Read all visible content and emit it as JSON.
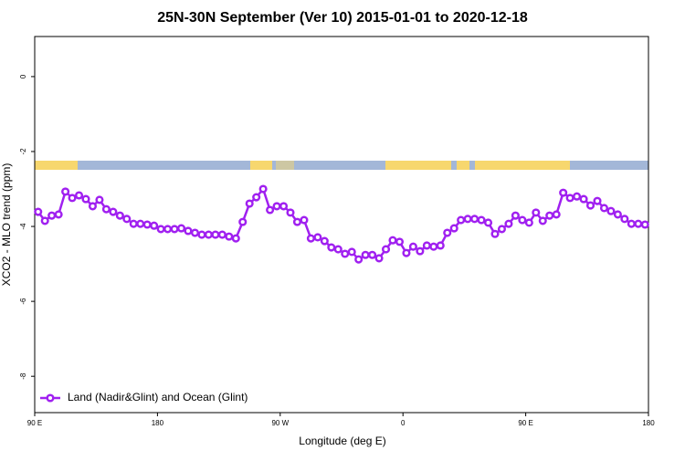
{
  "chart_data": {
    "type": "line",
    "title": "25N-30N September (Ver 10)   2015-01-01 to 2020-12-18",
    "x_label": "Longitude (deg E)",
    "y_label": "XCO2 - MLO trend (ppm)",
    "xlim": [
      90,
      540
    ],
    "ylim": [
      -8.97,
      1.07
    ],
    "xticks": [
      {
        "value": 90,
        "label": "90 E"
      },
      180,
      {
        "value": 270,
        "label": "90 W"
      },
      {
        "value": 360,
        "label": "0"
      },
      {
        "value": 450,
        "label": "90 E"
      },
      {
        "value": 540,
        "label": "180"
      }
    ],
    "yticks": [
      0,
      -2,
      -4,
      -6,
      -8
    ],
    "legend": "bottom-left",
    "x": [
      92.5,
      97.5,
      102.5,
      107.5,
      112.5,
      117.5,
      122.5,
      127.5,
      132.5,
      137.5,
      142.5,
      147.5,
      152.5,
      157.5,
      162.5,
      167.5,
      172.5,
      177.5,
      182.5,
      187.5,
      192.5,
      197.5,
      202.5,
      207.5,
      212.5,
      217.5,
      222.5,
      227.5,
      232.5,
      237.5,
      242.5,
      247.5,
      252.5,
      257.5,
      262.5,
      267.5,
      272.5,
      277.5,
      282.5,
      287.5,
      292.5,
      297.5,
      302.5,
      307.5,
      312.5,
      317.5,
      322.5,
      327.5,
      332.5,
      337.5,
      342.5,
      347.5,
      352.5,
      357.5,
      362.5,
      367.5,
      372.5,
      377.5,
      382.5,
      387.5,
      392.5,
      397.5,
      402.5,
      407.5,
      412.5,
      417.5,
      422.5,
      427.5,
      432.5,
      437.5,
      442.5,
      447.5,
      452.5,
      457.5,
      462.5,
      467.5,
      472.5,
      477.5,
      482.5,
      487.5,
      492.5,
      497.5,
      502.5,
      507.5,
      512.5,
      517.5,
      522.5,
      527.5,
      532.5,
      537.5
    ],
    "series": [
      {
        "name": "Land (Nadir&Glint) and Ocean (Glint)",
        "color": "#a020f0",
        "values": [
          -3.61,
          -3.85,
          -3.71,
          -3.68,
          -3.07,
          -3.24,
          -3.17,
          -3.27,
          -3.46,
          -3.29,
          -3.54,
          -3.61,
          -3.71,
          -3.8,
          -3.93,
          -3.93,
          -3.95,
          -3.98,
          -4.07,
          -4.07,
          -4.07,
          -4.05,
          -4.12,
          -4.17,
          -4.22,
          -4.22,
          -4.22,
          -4.22,
          -4.27,
          -4.32,
          -3.88,
          -3.39,
          -3.22,
          -3.0,
          -3.56,
          -3.46,
          -3.46,
          -3.63,
          -3.88,
          -3.83,
          -4.32,
          -4.29,
          -4.39,
          -4.56,
          -4.61,
          -4.73,
          -4.68,
          -4.88,
          -4.76,
          -4.76,
          -4.85,
          -4.61,
          -4.37,
          -4.41,
          -4.71,
          -4.54,
          -4.66,
          -4.51,
          -4.54,
          -4.51,
          -4.17,
          -4.05,
          -3.83,
          -3.8,
          -3.8,
          -3.83,
          -3.9,
          -4.2,
          -4.07,
          -3.93,
          -3.71,
          -3.83,
          -3.9,
          -3.63,
          -3.85,
          -3.71,
          -3.68,
          -3.1,
          -3.24,
          -3.2,
          -3.27,
          -3.44,
          -3.32,
          -3.51,
          -3.59,
          -3.68,
          -3.8,
          -3.93,
          -3.93,
          -3.95
        ]
      }
    ]
  }
}
